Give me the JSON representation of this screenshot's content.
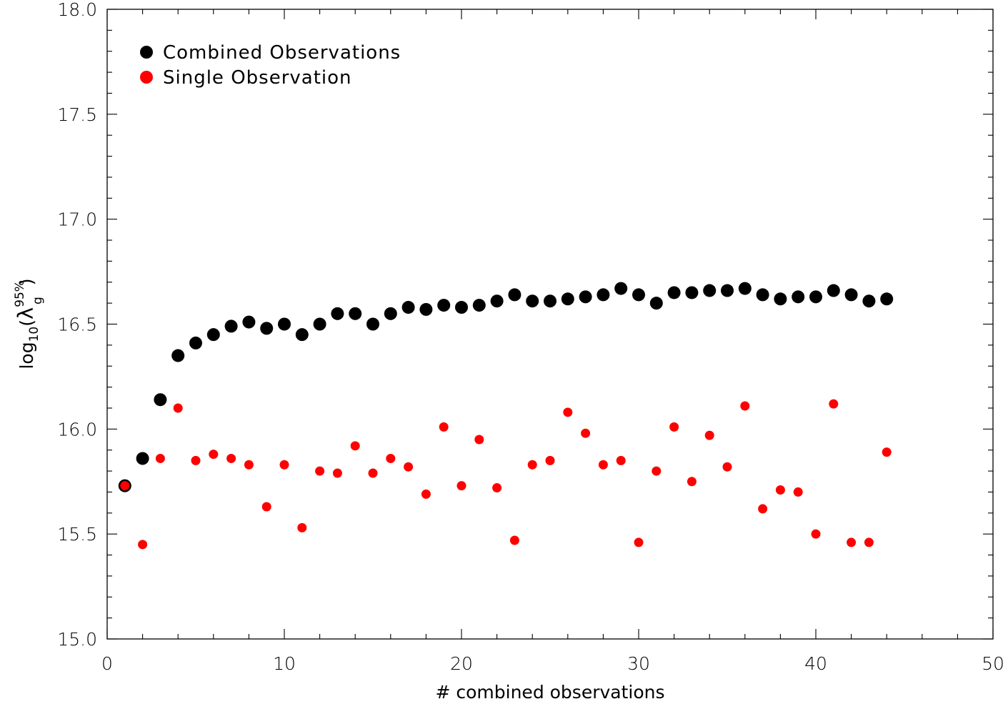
{
  "chart_data": {
    "type": "scatter",
    "xlabel": "# combined observations",
    "ylabel_base": "log",
    "ylabel_sub": "10",
    "ylabel_symbol": "λ",
    "ylabel_symbol_sub": "g",
    "ylabel_symbol_sup": "95%",
    "xlim": [
      0,
      50
    ],
    "ylim": [
      15.0,
      18.0
    ],
    "x_major_ticks": [
      0,
      10,
      20,
      30,
      40,
      50
    ],
    "x_tick_labels": [
      "0",
      "10",
      "20",
      "30",
      "40",
      "50"
    ],
    "x_minor_step": 2,
    "y_major_ticks": [
      15.0,
      15.5,
      16.0,
      16.5,
      17.0,
      17.5,
      18.0
    ],
    "y_tick_labels": [
      "15.0",
      "15.5",
      "16.0",
      "16.5",
      "17.0",
      "17.5",
      "18.0"
    ],
    "y_minor_step": 0.1,
    "grid": false,
    "legend_position": "top-left",
    "series": [
      {
        "name": "Combined Observations",
        "color": "#000000",
        "marker": "large-filled-circle",
        "x": [
          1,
          2,
          3,
          4,
          5,
          6,
          7,
          8,
          9,
          10,
          11,
          12,
          13,
          14,
          15,
          16,
          17,
          18,
          19,
          20,
          21,
          22,
          23,
          24,
          25,
          26,
          27,
          28,
          29,
          30,
          31,
          32,
          33,
          34,
          35,
          36,
          37,
          38,
          39,
          40,
          41,
          42,
          43,
          44
        ],
        "y": [
          15.73,
          15.86,
          16.14,
          16.35,
          16.41,
          16.45,
          16.49,
          16.51,
          16.48,
          16.5,
          16.45,
          16.5,
          16.55,
          16.55,
          16.5,
          16.55,
          16.58,
          16.57,
          16.59,
          16.58,
          16.59,
          16.61,
          16.64,
          16.61,
          16.61,
          16.62,
          16.63,
          16.64,
          16.67,
          16.64,
          16.6,
          16.65,
          16.65,
          16.66,
          16.66,
          16.67,
          16.64,
          16.62,
          16.63,
          16.63,
          16.66,
          16.64,
          16.61,
          16.62
        ]
      },
      {
        "name": "Single Observation",
        "color": "#ff0000",
        "marker": "small-filled-circle",
        "x": [
          1,
          2,
          3,
          4,
          5,
          6,
          7,
          8,
          9,
          10,
          11,
          12,
          13,
          14,
          15,
          16,
          17,
          18,
          19,
          20,
          21,
          22,
          23,
          24,
          25,
          26,
          27,
          28,
          29,
          30,
          31,
          32,
          33,
          34,
          35,
          36,
          37,
          38,
          39,
          40,
          41,
          42,
          43,
          44
        ],
        "y": [
          15.73,
          15.45,
          15.86,
          16.1,
          15.85,
          15.88,
          15.86,
          15.83,
          15.63,
          15.83,
          15.53,
          15.8,
          15.79,
          15.92,
          15.79,
          15.86,
          15.82,
          15.69,
          16.01,
          15.73,
          15.95,
          15.72,
          15.47,
          15.83,
          15.85,
          16.08,
          15.98,
          15.83,
          15.85,
          15.46,
          15.8,
          16.01,
          15.75,
          15.97,
          15.82,
          16.11,
          15.62,
          15.71,
          15.7,
          15.5,
          16.12,
          15.46,
          15.46,
          15.89
        ]
      }
    ]
  }
}
